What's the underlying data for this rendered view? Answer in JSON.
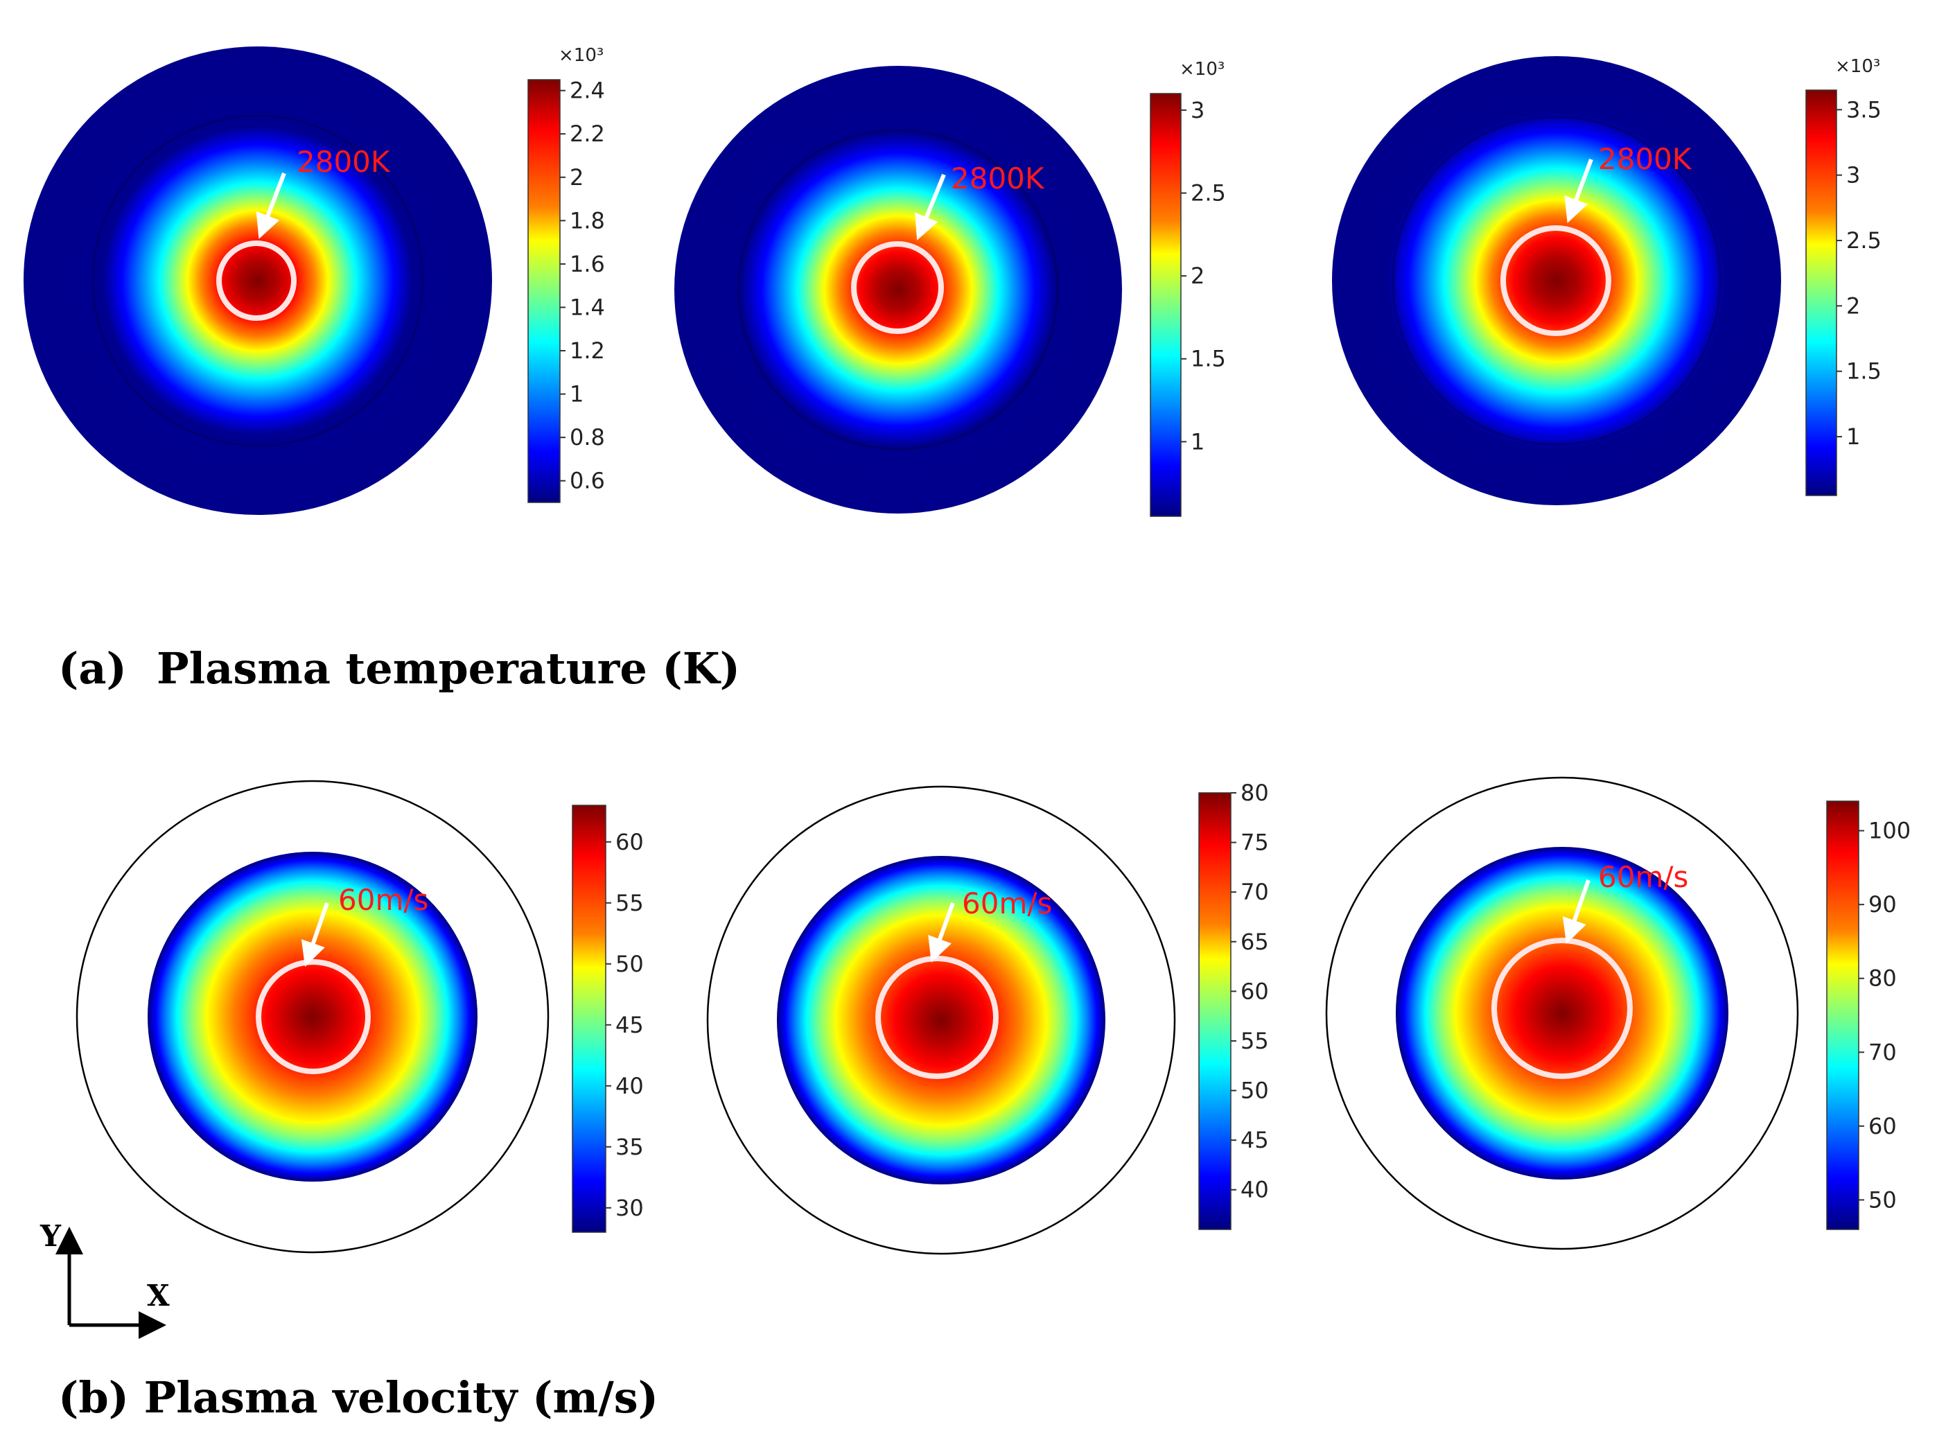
{
  "figure": {
    "caption_a": "(a)  Plasma temperature (K)",
    "caption_b": "(b) Plasma velocity (m/s)",
    "axis_y": "Y",
    "axis_x": "X"
  },
  "colors": {
    "colormap": [
      "#00007f",
      "#0000ff",
      "#007fff",
      "#00ffff",
      "#7fff7f",
      "#ffff00",
      "#ff7f00",
      "#ff0000",
      "#7f0000"
    ],
    "annotation_text": "#ff1a1a",
    "marker_ring": "#ffffff",
    "background": "#ffffff"
  },
  "chart_data": [
    {
      "type": "heatmap",
      "group": "a",
      "quantity": "Plasma temperature",
      "unit": "K",
      "colorbar_multiplier": "×10³",
      "range": [
        500,
        2450
      ],
      "colorbar_ticks": [
        "2.4",
        "2.2",
        "2",
        "1.8",
        "1.6",
        "1.4",
        "1.2",
        "1",
        "0.8",
        "0.6"
      ],
      "tick_values": [
        2.4,
        2.2,
        2.0,
        1.8,
        1.6,
        1.4,
        1.2,
        1.0,
        0.8,
        0.6
      ],
      "annotation": "2800K"
    },
    {
      "type": "heatmap",
      "group": "a",
      "quantity": "Plasma temperature",
      "unit": "K",
      "colorbar_multiplier": "×10³",
      "range": [
        550,
        3100
      ],
      "colorbar_ticks": [
        "3",
        "2.5",
        "2",
        "1.5",
        "1"
      ],
      "tick_values": [
        3.0,
        2.5,
        2.0,
        1.5,
        1.0
      ],
      "annotation": "2800K"
    },
    {
      "type": "heatmap",
      "group": "a",
      "quantity": "Plasma temperature",
      "unit": "K",
      "colorbar_multiplier": "×10³",
      "range": [
        550,
        3650
      ],
      "colorbar_ticks": [
        "3.5",
        "3",
        "2.5",
        "2",
        "1.5",
        "1"
      ],
      "tick_values": [
        3.5,
        3.0,
        2.5,
        2.0,
        1.5,
        1.0
      ],
      "annotation": "2800K"
    },
    {
      "type": "heatmap",
      "group": "b",
      "quantity": "Plasma velocity",
      "unit": "m/s",
      "range": [
        28,
        63
      ],
      "colorbar_ticks": [
        "60",
        "55",
        "50",
        "45",
        "40",
        "35",
        "30"
      ],
      "tick_values": [
        60,
        55,
        50,
        45,
        40,
        35,
        30
      ],
      "annotation": "60m/s"
    },
    {
      "type": "heatmap",
      "group": "b",
      "quantity": "Plasma velocity",
      "unit": "m/s",
      "range": [
        36,
        80
      ],
      "colorbar_ticks": [
        "80",
        "75",
        "70",
        "65",
        "60",
        "55",
        "50",
        "45",
        "40"
      ],
      "tick_values": [
        80,
        75,
        70,
        65,
        60,
        55,
        50,
        45,
        40
      ],
      "annotation": "60m/s"
    },
    {
      "type": "heatmap",
      "group": "b",
      "quantity": "Plasma velocity",
      "unit": "m/s",
      "range": [
        46,
        104
      ],
      "colorbar_ticks": [
        "100",
        "90",
        "80",
        "70",
        "60",
        "50"
      ],
      "tick_values": [
        100,
        90,
        80,
        70,
        60,
        50
      ],
      "annotation": "60m/s"
    }
  ]
}
